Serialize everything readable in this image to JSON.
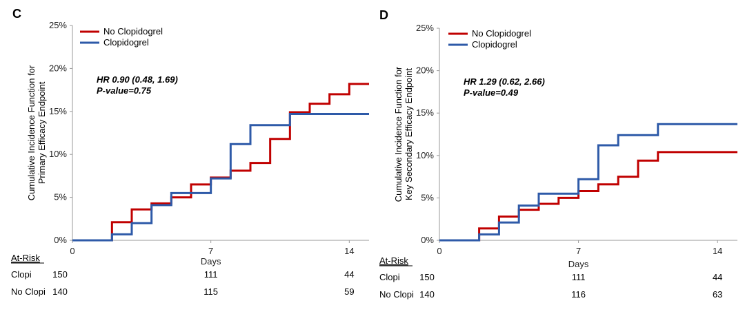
{
  "chart_data": [
    {
      "type": "line",
      "step": true,
      "panel_label": "C",
      "title": "",
      "xlabel": "Days",
      "ylabel_lines": [
        "Cumulative Incidence Function for",
        "Primary Efficacy Endpoint"
      ],
      "xlim": [
        0,
        15
      ],
      "ylim": [
        0,
        0.25
      ],
      "x_ticks": [
        0,
        7,
        14
      ],
      "y_ticks": [
        0,
        0.05,
        0.1,
        0.15,
        0.2,
        0.25
      ],
      "y_tick_labels": [
        "0%",
        "5%",
        "10%",
        "15%",
        "20%",
        "25%"
      ],
      "legend_position": "top-left",
      "annotation": [
        "HR 0.90 (0.48, 1.69)",
        "P-value=0.75"
      ],
      "series": [
        {
          "name": "No Clopidogrel",
          "color": "#c00000",
          "x": [
            0,
            2,
            3,
            4,
            5,
            6,
            7,
            8,
            9,
            10,
            11,
            12,
            13,
            14,
            15
          ],
          "y": [
            0,
            0.021,
            0.036,
            0.043,
            0.05,
            0.065,
            0.073,
            0.081,
            0.09,
            0.118,
            0.149,
            0.159,
            0.17,
            0.182,
            0.182
          ]
        },
        {
          "name": "Clopidogrel",
          "color": "#2e5aa8",
          "x": [
            0,
            2,
            3,
            4,
            5,
            7,
            8,
            9,
            11,
            15
          ],
          "y": [
            0,
            0.007,
            0.02,
            0.041,
            0.055,
            0.072,
            0.112,
            0.134,
            0.147,
            0.147
          ]
        }
      ],
      "at_risk": {
        "header": "At-Risk",
        "rows": [
          {
            "label": "Clopi",
            "values": [
              "150",
              "111",
              "44"
            ]
          },
          {
            "label": "No Clopi",
            "values": [
              "140",
              "115",
              "59"
            ]
          }
        ]
      }
    },
    {
      "type": "line",
      "step": true,
      "panel_label": "D",
      "title": "",
      "xlabel": "Days",
      "ylabel_lines": [
        "Cumulative Incidence Function for",
        "Key Secondary Efficacy Endpoint"
      ],
      "xlim": [
        0,
        15
      ],
      "ylim": [
        0,
        0.25
      ],
      "x_ticks": [
        0,
        7,
        14
      ],
      "y_ticks": [
        0,
        0.05,
        0.1,
        0.15,
        0.2,
        0.25
      ],
      "y_tick_labels": [
        "0%",
        "5%",
        "10%",
        "15%",
        "20%",
        "25%"
      ],
      "legend_position": "top-left",
      "annotation": [
        "HR 1.29 (0.62, 2.66)",
        "P-value=0.49"
      ],
      "series": [
        {
          "name": "No Clopidogrel",
          "color": "#c00000",
          "x": [
            0,
            2,
            3,
            4,
            5,
            6,
            7,
            8,
            9,
            10,
            11,
            15
          ],
          "y": [
            0,
            0.014,
            0.028,
            0.036,
            0.043,
            0.05,
            0.058,
            0.066,
            0.075,
            0.094,
            0.104,
            0.104
          ]
        },
        {
          "name": "Clopidogrel",
          "color": "#2e5aa8",
          "x": [
            0,
            2,
            3,
            4,
            5,
            7,
            8,
            9,
            11,
            15
          ],
          "y": [
            0,
            0.007,
            0.021,
            0.041,
            0.055,
            0.072,
            0.112,
            0.124,
            0.137,
            0.137
          ]
        }
      ],
      "at_risk": {
        "header": "At-Risk",
        "rows": [
          {
            "label": "Clopi",
            "values": [
              "150",
              "111",
              "44"
            ]
          },
          {
            "label": "No Clopi",
            "values": [
              "140",
              "116",
              "63"
            ]
          }
        ]
      }
    }
  ]
}
